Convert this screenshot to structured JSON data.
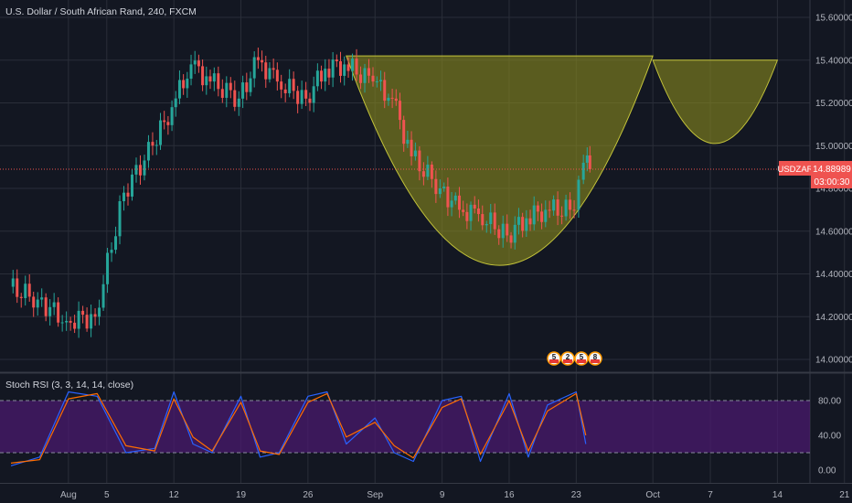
{
  "colors": {
    "background": "#131722",
    "grid": "#2a2e39",
    "candle_up": "#26a69a",
    "candle_down": "#ef5350",
    "price_line": "#ef5350",
    "pattern_fill": "#8a8a1e",
    "pattern_stroke": "#c4c43a",
    "rsi_band": "#4a1a6e",
    "rsi_k": "#2962ff",
    "rsi_d": "#ff6d00"
  },
  "header": {
    "title": "U.S. Dollar / South African Rand, 240, FXCM"
  },
  "price_tag": {
    "symbol": "USDZAR",
    "value": "14.88989",
    "countdown": "03:00:30"
  },
  "event_badges": [
    "5",
    "2",
    "5",
    "8"
  ],
  "chart_data": [
    {
      "type": "candlestick",
      "title": "U.S. Dollar / South African Rand, 240, FXCM",
      "symbol": "USDZAR",
      "last_price": 14.88989,
      "ylim": [
        13.9,
        15.7
      ],
      "y_ticks": [
        "14.00000",
        "14.20000",
        "14.40000",
        "14.60000",
        "14.80000",
        "15.00000",
        "15.20000",
        "15.40000",
        "15.60000"
      ],
      "x_ticks": [
        "Aug",
        "5",
        "12",
        "19",
        "26",
        "Sep",
        "9",
        "16",
        "23",
        "Oct",
        "7",
        "14",
        "21"
      ],
      "series": [
        {
          "name": "",
          "x": [
            "Jul 26",
            "Jul 29",
            "Aug 1",
            "Aug 4",
            "Aug 7",
            "Aug 10",
            "Aug 12",
            "Aug 14",
            "Aug 16",
            "Aug 19",
            "Aug 21",
            "Aug 23",
            "Aug 26",
            "Aug 28",
            "Aug 30",
            "Sep 2",
            "Sep 4",
            "Sep 6",
            "Sep 9",
            "Sep 11",
            "Sep 13",
            "Sep 16",
            "Sep 18",
            "Sep 20",
            "Sep 23",
            "Sep 24"
          ],
          "values": [
            14.28,
            14.18,
            14.2,
            14.78,
            15.0,
            15.18,
            15.38,
            15.3,
            15.22,
            15.4,
            15.3,
            15.22,
            15.36,
            15.38,
            15.3,
            15.22,
            14.95,
            14.8,
            14.7,
            14.68,
            14.58,
            14.66,
            14.7,
            14.7,
            14.92,
            14.89
          ]
        }
      ],
      "patterns": [
        {
          "name": "cup",
          "x_range": [
            "Aug 30",
            "Oct 1"
          ],
          "top": 15.42,
          "bottom": 14.44
        },
        {
          "name": "handle",
          "x_range": [
            "Oct 1",
            "Oct 14"
          ],
          "top": 15.4,
          "bottom": 15.01
        }
      ]
    },
    {
      "type": "line",
      "title": "Stoch RSI (3, 3, 14, 14, close)",
      "ylim": [
        -10,
        100
      ],
      "y_ticks": [
        "80.00",
        "40.00",
        "0.00"
      ],
      "band": [
        20,
        80
      ],
      "series": [
        {
          "name": "K",
          "x": [
            "Jul 26",
            "Jul 29",
            "Aug 1",
            "Aug 4",
            "Aug 7",
            "Aug 10",
            "Aug 12",
            "Aug 14",
            "Aug 16",
            "Aug 19",
            "Aug 21",
            "Aug 23",
            "Aug 26",
            "Aug 28",
            "Aug 30",
            "Sep 2",
            "Sep 4",
            "Sep 6",
            "Sep 9",
            "Sep 11",
            "Sep 13",
            "Sep 16",
            "Sep 18",
            "Sep 20",
            "Sep 23",
            "Sep 24"
          ],
          "values": [
            5,
            15,
            90,
            85,
            20,
            25,
            90,
            30,
            20,
            85,
            15,
            20,
            85,
            90,
            30,
            60,
            20,
            10,
            80,
            85,
            10,
            88,
            15,
            75,
            90,
            30
          ]
        },
        {
          "name": "D",
          "x": [
            "Jul 26",
            "Jul 29",
            "Aug 1",
            "Aug 4",
            "Aug 7",
            "Aug 10",
            "Aug 12",
            "Aug 14",
            "Aug 16",
            "Aug 19",
            "Aug 21",
            "Aug 23",
            "Aug 26",
            "Aug 28",
            "Aug 30",
            "Sep 2",
            "Sep 4",
            "Sep 6",
            "Sep 9",
            "Sep 11",
            "Sep 13",
            "Sep 16",
            "Sep 18",
            "Sep 20",
            "Sep 23",
            "Sep 24"
          ],
          "values": [
            8,
            12,
            82,
            88,
            28,
            22,
            82,
            38,
            22,
            78,
            22,
            18,
            78,
            88,
            38,
            55,
            28,
            14,
            72,
            82,
            18,
            80,
            22,
            68,
            88,
            40
          ]
        }
      ]
    }
  ]
}
